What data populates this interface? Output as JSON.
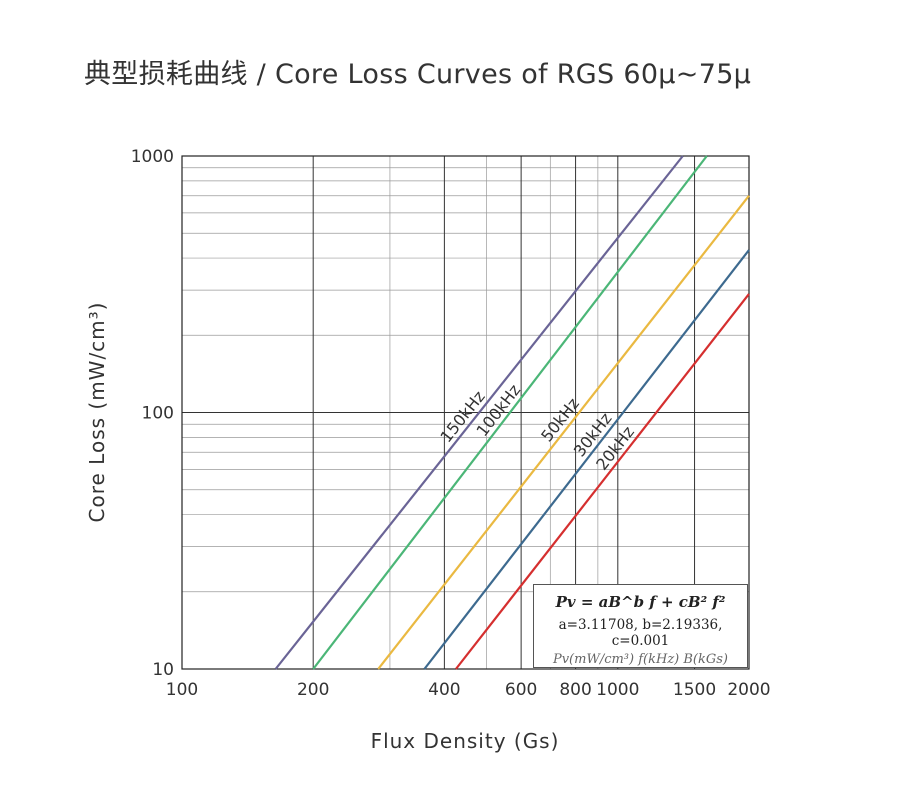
{
  "title": "典型损耗曲线 / Core Loss Curves of RGS 60μ~75μ",
  "formula": {
    "main": "Pv = aB^b f + cB² f²",
    "params": "a=3.11708,  b=2.19336,  c=0.001",
    "units": "Pv(mW/cm³) f(kHz) B(kGs)"
  },
  "chart_data": {
    "type": "line",
    "title": "典型损耗曲线 / Core Loss Curves of RGS 60μ~75μ",
    "xlabel": "Flux Density (Gs)",
    "ylabel": "Core Loss (mW/cm³)",
    "x_scale": "log",
    "y_scale": "log",
    "xlim": [
      100,
      2000
    ],
    "ylim": [
      10,
      1000
    ],
    "x_ticks": [
      100,
      200,
      400,
      600,
      800,
      1000,
      1500,
      2000
    ],
    "x_tick_labels": [
      "100",
      "200",
      "400",
      "600",
      "800",
      "1000",
      "1500",
      "2000"
    ],
    "y_ticks": [
      10,
      100,
      1000
    ],
    "y_tick_labels": [
      "10",
      "100",
      "1000"
    ],
    "grid": true,
    "series": [
      {
        "name": "150kHz",
        "color": "#6a6496",
        "x": [
          164,
          1410
        ],
        "y": [
          10,
          1000
        ]
      },
      {
        "name": "100kHz",
        "color": "#4bb677",
        "x": [
          200,
          1600
        ],
        "y": [
          10,
          1000
        ]
      },
      {
        "name": "50kHz",
        "color": "#eab941",
        "x": [
          282,
          2000
        ],
        "y": [
          10,
          700
        ]
      },
      {
        "name": "30kHz",
        "color": "#3d6a8f",
        "x": [
          360,
          2000
        ],
        "y": [
          10,
          430
        ]
      },
      {
        "name": "20kHz",
        "color": "#d52f2f",
        "x": [
          425,
          2000
        ],
        "y": [
          10,
          290
        ]
      }
    ]
  }
}
